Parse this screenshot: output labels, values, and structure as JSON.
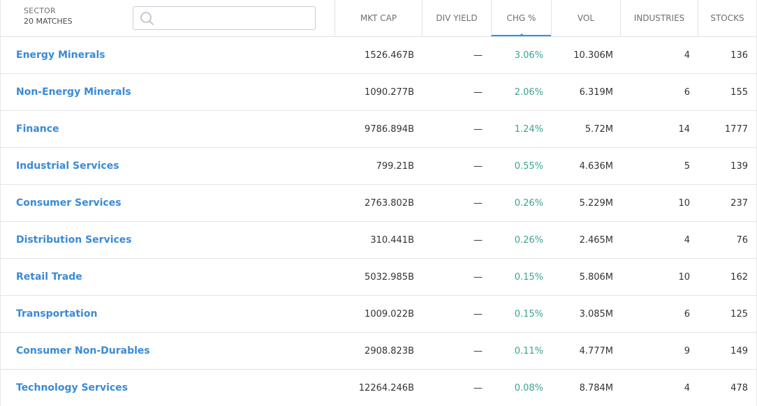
{
  "header": {
    "sector_title": "SECTOR",
    "match_count": "20 MATCHES",
    "search": {
      "value": "",
      "placeholder": ""
    },
    "columns": [
      {
        "key": "mkt_cap",
        "label": "MKT CAP"
      },
      {
        "key": "div_yield",
        "label": "DIV YIELD"
      },
      {
        "key": "chg",
        "label": "CHG %"
      },
      {
        "key": "vol",
        "label": "VOL"
      },
      {
        "key": "industries",
        "label": "INDUSTRIES"
      },
      {
        "key": "stocks",
        "label": "STOCKS"
      }
    ],
    "sorted_column": "chg"
  },
  "colors": {
    "link": "#3a8ad6",
    "positive": "#3aa491",
    "accent": "#2196f3"
  },
  "rows": [
    {
      "sector": "Energy Minerals",
      "mkt_cap": "1526.467B",
      "div_yield": "—",
      "chg": "3.06%",
      "vol": "10.306M",
      "industries": "4",
      "stocks": "136"
    },
    {
      "sector": "Non-Energy Minerals",
      "mkt_cap": "1090.277B",
      "div_yield": "—",
      "chg": "2.06%",
      "vol": "6.319M",
      "industries": "6",
      "stocks": "155"
    },
    {
      "sector": "Finance",
      "mkt_cap": "9786.894B",
      "div_yield": "—",
      "chg": "1.24%",
      "vol": "5.72M",
      "industries": "14",
      "stocks": "1777"
    },
    {
      "sector": "Industrial Services",
      "mkt_cap": "799.21B",
      "div_yield": "—",
      "chg": "0.55%",
      "vol": "4.636M",
      "industries": "5",
      "stocks": "139"
    },
    {
      "sector": "Consumer Services",
      "mkt_cap": "2763.802B",
      "div_yield": "—",
      "chg": "0.26%",
      "vol": "5.229M",
      "industries": "10",
      "stocks": "237"
    },
    {
      "sector": "Distribution Services",
      "mkt_cap": "310.441B",
      "div_yield": "—",
      "chg": "0.26%",
      "vol": "2.465M",
      "industries": "4",
      "stocks": "76"
    },
    {
      "sector": "Retail Trade",
      "mkt_cap": "5032.985B",
      "div_yield": "—",
      "chg": "0.15%",
      "vol": "5.806M",
      "industries": "10",
      "stocks": "162"
    },
    {
      "sector": "Transportation",
      "mkt_cap": "1009.022B",
      "div_yield": "—",
      "chg": "0.15%",
      "vol": "3.085M",
      "industries": "6",
      "stocks": "125"
    },
    {
      "sector": "Consumer Non-Durables",
      "mkt_cap": "2908.823B",
      "div_yield": "—",
      "chg": "0.11%",
      "vol": "4.777M",
      "industries": "9",
      "stocks": "149"
    },
    {
      "sector": "Technology Services",
      "mkt_cap": "12264.246B",
      "div_yield": "—",
      "chg": "0.08%",
      "vol": "8.784M",
      "industries": "4",
      "stocks": "478"
    }
  ]
}
